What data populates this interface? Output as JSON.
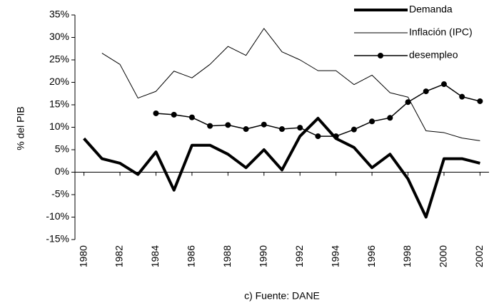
{
  "chart_data": {
    "type": "line",
    "y_label": "% del PIB",
    "x_label": "c) Fuente: DANE",
    "x": [
      1980,
      1981,
      1982,
      1983,
      1984,
      1985,
      1986,
      1987,
      1988,
      1989,
      1990,
      1991,
      1992,
      1993,
      1994,
      1995,
      1996,
      1997,
      1998,
      1999,
      2000,
      2001,
      2002
    ],
    "xlim": [
      1979.5,
      2002.5
    ],
    "xticks": [
      1980,
      1982,
      1984,
      1986,
      1988,
      1990,
      1992,
      1994,
      1996,
      1998,
      2000,
      2002
    ],
    "ylim": [
      -15,
      35
    ],
    "yticks": [
      {
        "value": -15,
        "label": "-15%"
      },
      {
        "value": -10,
        "label": "-10%"
      },
      {
        "value": -5,
        "label": "-5%"
      },
      {
        "value": 0,
        "label": "0%"
      },
      {
        "value": 5,
        "label": "5%"
      },
      {
        "value": 10,
        "label": "10%"
      },
      {
        "value": 15,
        "label": "15%"
      },
      {
        "value": 20,
        "label": "20%"
      },
      {
        "value": 25,
        "label": "25%"
      },
      {
        "value": 30,
        "label": "30%"
      },
      {
        "value": 35,
        "label": "35%"
      }
    ],
    "grid": false,
    "legend": "upper right",
    "series": [
      {
        "name": "Demanda",
        "color": "#000000",
        "line_width": 4,
        "marker": null,
        "values": [
          7.5,
          3,
          2,
          -0.5,
          4.5,
          -4,
          6,
          6,
          4,
          1,
          5,
          0.5,
          8,
          12,
          7.5,
          5.5,
          1,
          4,
          -1.5,
          -10,
          3,
          3,
          2
        ]
      },
      {
        "name": "Inflación (IPC)",
        "color": "#000000",
        "line_width": 1,
        "marker": null,
        "values": [
          null,
          26.5,
          24,
          16.5,
          18,
          22.5,
          21,
          24,
          28,
          26,
          32,
          26.8,
          25,
          22.6,
          22.6,
          19.5,
          21.6,
          17.7,
          16.7,
          9.2,
          8.8,
          7.6,
          7
        ]
      },
      {
        "name": "desempleo",
        "color": "#000000",
        "line_width": 1.5,
        "marker": "circle",
        "values": [
          null,
          null,
          null,
          null,
          13.1,
          12.8,
          12.2,
          10.3,
          10.5,
          9.6,
          10.6,
          9.6,
          9.9,
          8,
          8,
          9.5,
          11.3,
          12.1,
          15.6,
          18,
          19.6,
          16.8,
          15.8
        ]
      }
    ]
  }
}
